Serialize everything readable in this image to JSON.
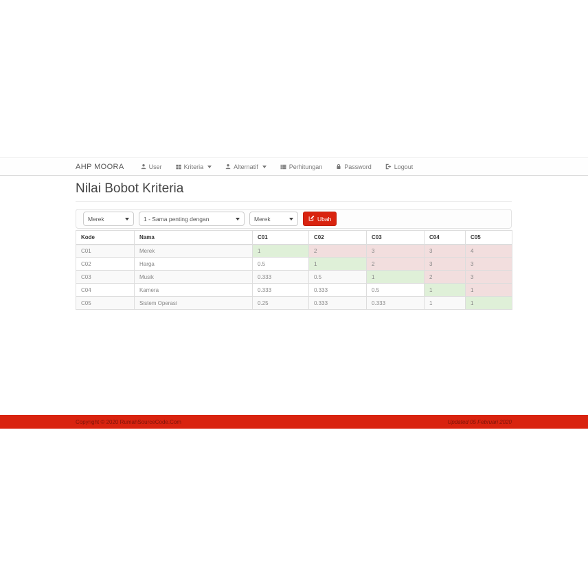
{
  "navbar": {
    "brand": "AHP MOORA",
    "items": [
      {
        "label": "User",
        "icon": "user-icon",
        "dropdown": false
      },
      {
        "label": "Kriteria",
        "icon": "grid-icon",
        "dropdown": true
      },
      {
        "label": "Alternatif",
        "icon": "user-icon",
        "dropdown": true
      },
      {
        "label": "Perhitungan",
        "icon": "table-icon",
        "dropdown": false
      },
      {
        "label": "Password",
        "icon": "lock-icon",
        "dropdown": false
      },
      {
        "label": "Logout",
        "icon": "logout-icon",
        "dropdown": false
      }
    ]
  },
  "page": {
    "title": "Nilai Bobot Kriteria"
  },
  "form": {
    "select_kriteria_1": "Merek",
    "select_intensitas": "1 - Sama penting dengan",
    "select_kriteria_2": "Merek",
    "submit_label": "Ubah",
    "submit_icon": "edit-icon"
  },
  "table": {
    "headers": [
      "Kode",
      "Nama",
      "C01",
      "C02",
      "C03",
      "C04",
      "C05"
    ],
    "rows": [
      {
        "kode": "C01",
        "nama": "Merek",
        "values": [
          "1",
          "2",
          "3",
          "3",
          "4"
        ]
      },
      {
        "kode": "C02",
        "nama": "Harga",
        "values": [
          "0.5",
          "1",
          "2",
          "3",
          "3"
        ]
      },
      {
        "kode": "C03",
        "nama": "Musik",
        "values": [
          "0.333",
          "0.5",
          "1",
          "2",
          "3"
        ]
      },
      {
        "kode": "C04",
        "nama": "Kamera",
        "values": [
          "0.333",
          "0.333",
          "0.5",
          "1",
          "1"
        ]
      },
      {
        "kode": "C05",
        "nama": "Sistem Operasi",
        "values": [
          "0.25",
          "0.333",
          "0.333",
          "1",
          "1"
        ]
      }
    ]
  },
  "footer": {
    "copyright": "Copyright © 2020 RumahSourceCode.Com",
    "updated": "Updated 05 Februari 2020"
  },
  "colors": {
    "accent_red": "#d9230f",
    "diagonal_green_bg": "#dff0d8",
    "upper_triangle_pink_bg": "#f2dede",
    "striped_row_bg": "#f9f9f9"
  }
}
